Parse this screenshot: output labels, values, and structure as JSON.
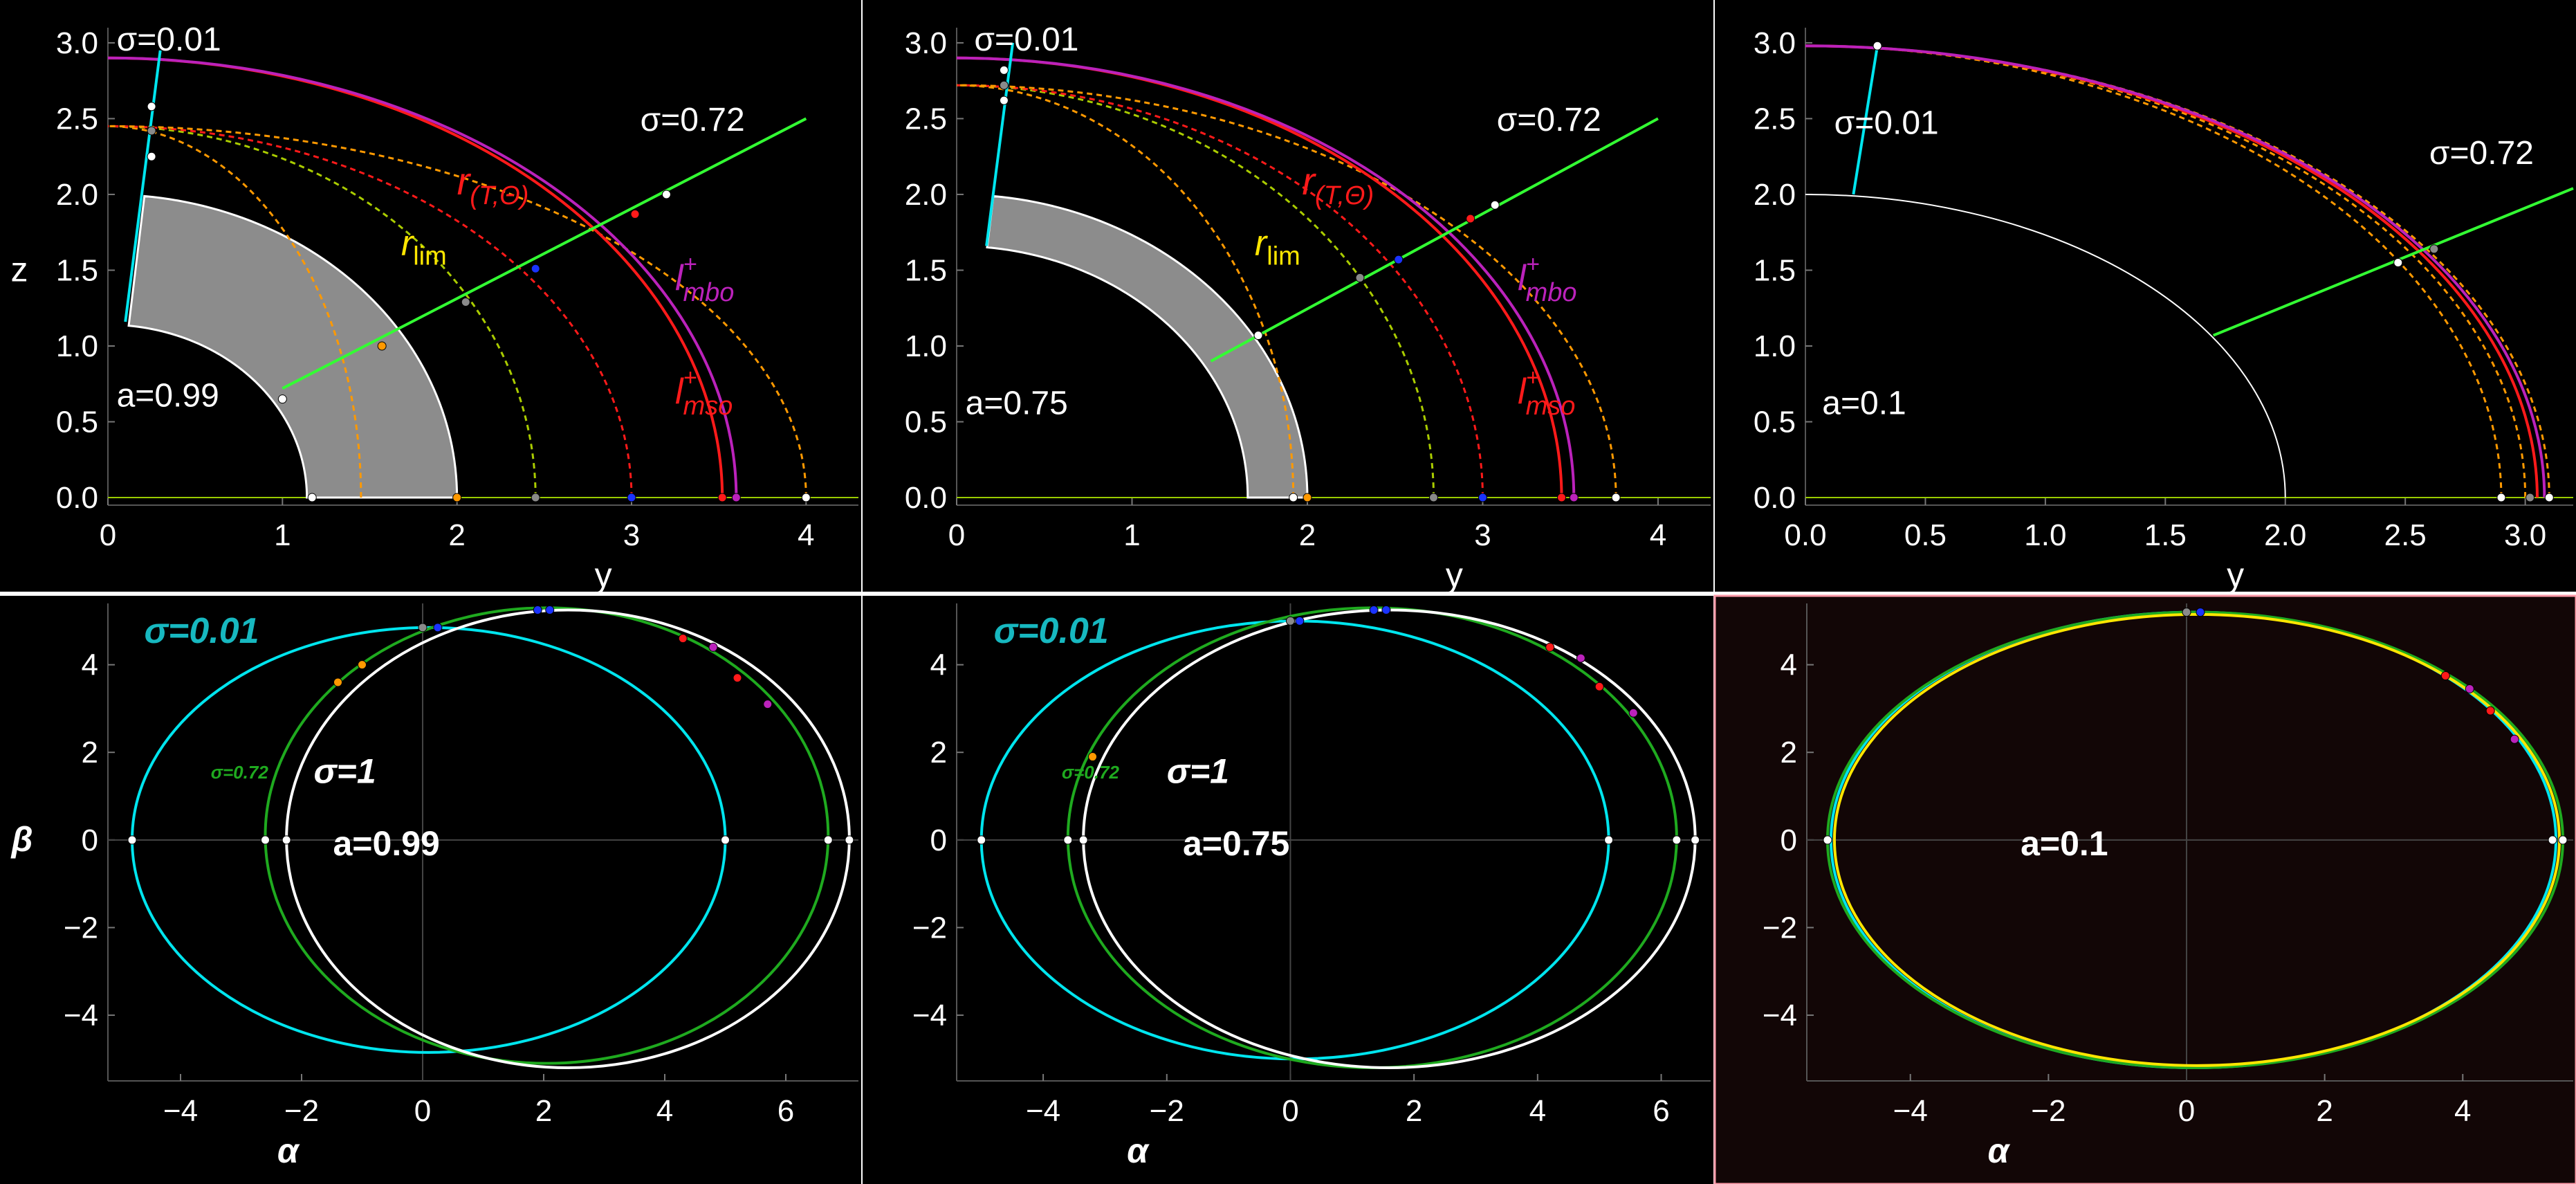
{
  "colors": {
    "background": "#000000",
    "tick_text": "#ffffff",
    "cyan": "#00e5ee",
    "green_ray": "#33ff33",
    "green_shadow": "#1faa1f",
    "orange": "#ff9900",
    "yellow_green": "#aacc00",
    "red": "#ff1a1a",
    "purple": "#bb22bb",
    "white": "#ffffff",
    "gray_fill": "#8c8c8c",
    "yellow_label": "#ffe600",
    "teal_label": "#17b8c0",
    "last_panel_background": "#120606",
    "last_panel_border": "#ff9aa8"
  },
  "chart_data": [
    {
      "type": "line",
      "panel": "top-left",
      "xlabel": "y",
      "ylabel": "z",
      "xlim": [
        0,
        4.3
      ],
      "ylim": [
        -0.05,
        3.1
      ],
      "xticks": [
        "0",
        "1",
        "2",
        "3",
        "4"
      ],
      "yticks": [
        "0.0",
        "0.5",
        "1.0",
        "1.5",
        "2.0",
        "2.5",
        "3.0"
      ],
      "annotations": {
        "a": "a=0.99",
        "sigma_low": "σ=0.01",
        "sigma_high": "σ=0.72",
        "rlim": "r",
        "rlim_sub": "lim",
        "rTtheta": "r",
        "rTtheta_sub": "(T,Θ)",
        "mbo": "l",
        "mbo_sup": "+",
        "mbo_sub": "mbo",
        "mso": "l",
        "mso_sup": "+",
        "mso_sub": "mso"
      },
      "shaded_region": {
        "r_inner": 1.14,
        "r_outer": 2.0,
        "theta_max_deg": 84
      },
      "rays": [
        {
          "name": "σ=0.01 ray",
          "color": "cyan",
          "start": [
            0.1,
            1.16
          ],
          "end": [
            0.3,
            2.95
          ]
        },
        {
          "name": "σ=0.72 ray",
          "color": "green_ray",
          "start": [
            1.0,
            0.72
          ],
          "end": [
            4.0,
            2.5
          ]
        }
      ],
      "arcs": [
        {
          "name": "orange inner",
          "color": "orange",
          "dashed": true,
          "r": 1.45,
          "top": 2.45
        },
        {
          "name": "yellow-green",
          "color": "yellow_green",
          "dashed": true,
          "r": 2.45,
          "top": 2.45
        },
        {
          "name": "red dashed",
          "color": "red",
          "dashed": true,
          "r": 3.0,
          "top": 2.45
        },
        {
          "name": "orange outer",
          "color": "orange",
          "dashed": true,
          "r": 4.0,
          "top": 2.45
        },
        {
          "name": "red solid",
          "color": "red",
          "dashed": false,
          "r": 3.52,
          "top": 2.9
        },
        {
          "name": "purple solid",
          "color": "purple",
          "dashed": false,
          "r": 3.6,
          "top": 2.9
        }
      ],
      "points": [
        {
          "x": 1.17,
          "y": 0.0,
          "color": "white"
        },
        {
          "x": 2.0,
          "y": 0.0,
          "color": "orange"
        },
        {
          "x": 2.45,
          "y": 0.0,
          "color": "gray"
        },
        {
          "x": 3.0,
          "y": 0.0,
          "color": "blue"
        },
        {
          "x": 3.52,
          "y": 0.0,
          "color": "red"
        },
        {
          "x": 3.6,
          "y": 0.0,
          "color": "purple"
        },
        {
          "x": 4.0,
          "y": 0.0,
          "color": "white"
        },
        {
          "x": 1.0,
          "y": 0.65,
          "color": "white"
        },
        {
          "x": 1.57,
          "y": 1.0,
          "color": "orange"
        },
        {
          "x": 2.05,
          "y": 1.29,
          "color": "gray"
        },
        {
          "x": 2.45,
          "y": 1.51,
          "color": "blue"
        },
        {
          "x": 3.02,
          "y": 1.87,
          "color": "red"
        },
        {
          "x": 3.2,
          "y": 2.0,
          "color": "white"
        },
        {
          "x": 0.25,
          "y": 2.25,
          "color": "white"
        },
        {
          "x": 0.25,
          "y": 2.42,
          "color": "gray"
        },
        {
          "x": 0.25,
          "y": 2.58,
          "color": "white"
        }
      ]
    },
    {
      "type": "line",
      "panel": "top-middle",
      "xlabel": "y",
      "ylabel": "",
      "xlim": [
        0,
        4.3
      ],
      "ylim": [
        -0.05,
        3.1
      ],
      "xticks": [
        "0",
        "1",
        "2",
        "3",
        "4"
      ],
      "yticks": [
        "0.0",
        "0.5",
        "1.0",
        "1.5",
        "2.0",
        "2.5",
        "3.0"
      ],
      "annotations": {
        "a": "a=0.75",
        "sigma_low": "σ=0.01",
        "sigma_high": "σ=0.72",
        "rlim": "r",
        "rlim_sub": "lim",
        "rTtheta": "r",
        "rTtheta_sub": "(T,Θ)",
        "mbo": "l",
        "mbo_sup": "+",
        "mbo_sub": "mbo",
        "mso": "l",
        "mso_sup": "+",
        "mso_sub": "mso"
      },
      "shaded_region": {
        "r_inner": 1.66,
        "r_outer": 2.0,
        "theta_max_deg": 84
      },
      "rays": [
        {
          "name": "σ=0.01 ray",
          "color": "cyan",
          "start": [
            0.17,
            1.66
          ],
          "end": [
            0.32,
            3.0
          ]
        },
        {
          "name": "σ=0.72 ray",
          "color": "green_ray",
          "start": [
            1.45,
            0.9
          ],
          "end": [
            4.0,
            2.5
          ]
        }
      ],
      "arcs": [
        {
          "name": "orange inner",
          "color": "orange",
          "dashed": true,
          "r": 1.92,
          "top": 2.72
        },
        {
          "name": "yellow-green",
          "color": "yellow_green",
          "dashed": true,
          "r": 2.72,
          "top": 2.72
        },
        {
          "name": "red dashed",
          "color": "red",
          "dashed": true,
          "r": 3.0,
          "top": 2.72
        },
        {
          "name": "orange outer",
          "color": "orange",
          "dashed": true,
          "r": 3.76,
          "top": 2.72
        },
        {
          "name": "red solid",
          "color": "red",
          "dashed": false,
          "r": 3.45,
          "top": 2.9
        },
        {
          "name": "purple solid",
          "color": "purple",
          "dashed": false,
          "r": 3.52,
          "top": 2.9
        }
      ],
      "points": [
        {
          "x": 1.92,
          "y": 0.0,
          "color": "white"
        },
        {
          "x": 2.0,
          "y": 0.0,
          "color": "orange"
        },
        {
          "x": 2.72,
          "y": 0.0,
          "color": "gray"
        },
        {
          "x": 3.0,
          "y": 0.0,
          "color": "blue"
        },
        {
          "x": 3.45,
          "y": 0.0,
          "color": "red"
        },
        {
          "x": 3.52,
          "y": 0.0,
          "color": "purple"
        },
        {
          "x": 3.76,
          "y": 0.0,
          "color": "white"
        },
        {
          "x": 1.72,
          "y": 1.07,
          "color": "white"
        },
        {
          "x": 2.3,
          "y": 1.45,
          "color": "gray"
        },
        {
          "x": 2.52,
          "y": 1.57,
          "color": "blue"
        },
        {
          "x": 2.93,
          "y": 1.84,
          "color": "red"
        },
        {
          "x": 3.07,
          "y": 1.93,
          "color": "white"
        },
        {
          "x": 0.27,
          "y": 2.62,
          "color": "white"
        },
        {
          "x": 0.27,
          "y": 2.72,
          "color": "gray"
        },
        {
          "x": 0.27,
          "y": 2.82,
          "color": "white"
        }
      ]
    },
    {
      "type": "line",
      "panel": "top-right",
      "xlabel": "y",
      "ylabel": "",
      "xlim": [
        0,
        3.2
      ],
      "ylim": [
        -0.05,
        3.1
      ],
      "xticks": [
        "0.0",
        "0.5",
        "1.0",
        "1.5",
        "2.0",
        "2.5",
        "3.0"
      ],
      "yticks": [
        "0.0",
        "0.5",
        "1.0",
        "1.5",
        "2.0",
        "2.5",
        "3.0"
      ],
      "annotations": {
        "a": "a=0.1",
        "sigma_low": "σ=0.01",
        "sigma_high": "σ=0.72"
      },
      "horizon": {
        "r": 2.0,
        "color": "white"
      },
      "rays": [
        {
          "name": "σ=0.01 ray",
          "color": "cyan",
          "start": [
            0.2,
            2.0
          ],
          "end": [
            0.3,
            2.98
          ]
        },
        {
          "name": "σ=0.72 ray",
          "color": "green_ray",
          "start": [
            1.7,
            1.07
          ],
          "end": [
            3.2,
            2.04
          ]
        }
      ],
      "arcs": [
        {
          "name": "orange 1",
          "color": "orange",
          "dashed": true,
          "r": 2.9,
          "top": 2.98
        },
        {
          "name": "orange 2",
          "color": "orange",
          "dashed": true,
          "r": 3.0,
          "top": 2.98
        },
        {
          "name": "orange 3",
          "color": "orange",
          "dashed": true,
          "r": 3.1,
          "top": 2.98
        },
        {
          "name": "red solid",
          "color": "red",
          "dashed": false,
          "r": 3.05,
          "top": 2.98
        },
        {
          "name": "purple solid",
          "color": "purple",
          "dashed": false,
          "r": 3.08,
          "top": 2.98
        }
      ],
      "points": [
        {
          "x": 2.9,
          "y": 0.0,
          "color": "white"
        },
        {
          "x": 3.02,
          "y": 0.0,
          "color": "gray"
        },
        {
          "x": 3.1,
          "y": 0.0,
          "color": "white"
        },
        {
          "x": 2.47,
          "y": 1.55,
          "color": "white"
        },
        {
          "x": 2.62,
          "y": 1.64,
          "color": "gray"
        },
        {
          "x": 0.3,
          "y": 2.98,
          "color": "white"
        }
      ]
    },
    {
      "type": "line",
      "panel": "bottom-left",
      "xlabel": "α",
      "ylabel": "β",
      "xlim": [
        -5.2,
        7.2
      ],
      "ylim": [
        -5.5,
        5.4
      ],
      "xticks": [
        "−4",
        "−2",
        "0",
        "2",
        "4",
        "6"
      ],
      "yticks": [
        "−4",
        "−2",
        "0",
        "2",
        "4"
      ],
      "annotations": {
        "a": "a=0.99",
        "sigma_low": "σ=0.01",
        "sigma_high": "σ=0.72",
        "sigma_one": "σ=1"
      },
      "series": [
        {
          "name": "σ=0.01",
          "color": "cyan",
          "left": -4.8,
          "right": 5.0,
          "top": 4.85,
          "bottom": -4.85
        },
        {
          "name": "σ=0.72",
          "color": "green_shadow",
          "left": -2.6,
          "right": 6.7,
          "top": 5.3,
          "bottom": -5.1
        },
        {
          "name": "σ=1",
          "color": "white",
          "left": -2.25,
          "right": 7.05,
          "top": 5.25,
          "bottom": -5.2
        }
      ],
      "points": [
        {
          "x": -4.8,
          "y": 0,
          "color": "white"
        },
        {
          "x": -2.6,
          "y": 0,
          "color": "white"
        },
        {
          "x": -2.25,
          "y": 0,
          "color": "white"
        },
        {
          "x": 5.0,
          "y": 0,
          "color": "white"
        },
        {
          "x": 6.7,
          "y": 0,
          "color": "white"
        },
        {
          "x": 7.05,
          "y": 0,
          "color": "white"
        },
        {
          "x": -1.4,
          "y": 3.6,
          "color": "orange"
        },
        {
          "x": -1.0,
          "y": 4.0,
          "color": "orange"
        },
        {
          "x": 0.0,
          "y": 4.85,
          "color": "gray"
        },
        {
          "x": 0.25,
          "y": 4.85,
          "color": "blue"
        },
        {
          "x": 1.9,
          "y": 5.25,
          "color": "blue"
        },
        {
          "x": 2.1,
          "y": 5.25,
          "color": "blue"
        },
        {
          "x": 4.3,
          "y": 4.6,
          "color": "red"
        },
        {
          "x": 4.8,
          "y": 4.4,
          "color": "purple"
        },
        {
          "x": 5.2,
          "y": 3.7,
          "color": "red"
        },
        {
          "x": 5.7,
          "y": 3.1,
          "color": "purple"
        }
      ]
    },
    {
      "type": "line",
      "panel": "bottom-middle",
      "xlabel": "α",
      "ylabel": "",
      "xlim": [
        -5.4,
        6.8
      ],
      "ylim": [
        -5.5,
        5.4
      ],
      "xticks": [
        "−4",
        "−2",
        "0",
        "2",
        "4",
        "6"
      ],
      "yticks": [
        "−4",
        "−2",
        "0",
        "2",
        "4"
      ],
      "annotations": {
        "a": "a=0.75",
        "sigma_low": "σ=0.01",
        "sigma_high": "σ=0.72",
        "sigma_one": "σ=1"
      },
      "series": [
        {
          "name": "σ=0.01",
          "color": "cyan",
          "left": -5.0,
          "right": 5.15,
          "top": 5.0,
          "bottom": -5.0
        },
        {
          "name": "σ=0.72",
          "color": "green_shadow",
          "left": -3.6,
          "right": 6.25,
          "top": 5.3,
          "bottom": -5.2
        },
        {
          "name": "σ=1",
          "color": "white",
          "left": -3.35,
          "right": 6.55,
          "top": 5.25,
          "bottom": -5.2
        }
      ],
      "points": [
        {
          "x": -5.0,
          "y": 0,
          "color": "white"
        },
        {
          "x": -3.6,
          "y": 0,
          "color": "white"
        },
        {
          "x": -3.35,
          "y": 0,
          "color": "white"
        },
        {
          "x": 5.15,
          "y": 0,
          "color": "white"
        },
        {
          "x": 6.25,
          "y": 0,
          "color": "white"
        },
        {
          "x": 6.55,
          "y": 0,
          "color": "white"
        },
        {
          "x": -3.2,
          "y": 1.9,
          "color": "orange"
        },
        {
          "x": 0.0,
          "y": 5.0,
          "color": "gray"
        },
        {
          "x": 0.15,
          "y": 5.0,
          "color": "blue"
        },
        {
          "x": 1.35,
          "y": 5.25,
          "color": "blue"
        },
        {
          "x": 1.55,
          "y": 5.25,
          "color": "blue"
        },
        {
          "x": 4.2,
          "y": 4.4,
          "color": "red"
        },
        {
          "x": 4.7,
          "y": 4.15,
          "color": "purple"
        },
        {
          "x": 5.0,
          "y": 3.5,
          "color": "red"
        },
        {
          "x": 5.55,
          "y": 2.9,
          "color": "purple"
        }
      ]
    },
    {
      "type": "line",
      "panel": "bottom-right",
      "xlabel": "α",
      "ylabel": "",
      "xlim": [
        -5.5,
        5.6
      ],
      "ylim": [
        -5.5,
        5.4
      ],
      "xticks": [
        "−4",
        "−2",
        "0",
        "2",
        "4"
      ],
      "yticks": [
        "−4",
        "−2",
        "0",
        "2",
        "4"
      ],
      "annotations": {
        "a": "a=0.1"
      },
      "series": [
        {
          "name": "σ=0.01",
          "color": "cyan",
          "left": -5.15,
          "right": 5.35,
          "top": 5.2,
          "bottom": -5.2
        },
        {
          "name": "σ=0.72",
          "color": "green_shadow",
          "left": -5.2,
          "right": 5.45,
          "top": 5.2,
          "bottom": -5.2
        },
        {
          "name": "σ=1",
          "color": "yellow_label",
          "left": -5.1,
          "right": 5.4,
          "top": 5.15,
          "bottom": -5.15
        }
      ],
      "points": [
        {
          "x": -5.2,
          "y": 0,
          "color": "white"
        },
        {
          "x": 5.3,
          "y": 0,
          "color": "white"
        },
        {
          "x": 5.45,
          "y": 0,
          "color": "white"
        },
        {
          "x": 0.0,
          "y": 5.2,
          "color": "gray"
        },
        {
          "x": 0.2,
          "y": 5.2,
          "color": "blue"
        },
        {
          "x": 3.75,
          "y": 3.75,
          "color": "red"
        },
        {
          "x": 4.1,
          "y": 3.45,
          "color": "purple"
        },
        {
          "x": 4.4,
          "y": 2.95,
          "color": "red"
        },
        {
          "x": 4.75,
          "y": 2.3,
          "color": "purple"
        }
      ]
    }
  ]
}
